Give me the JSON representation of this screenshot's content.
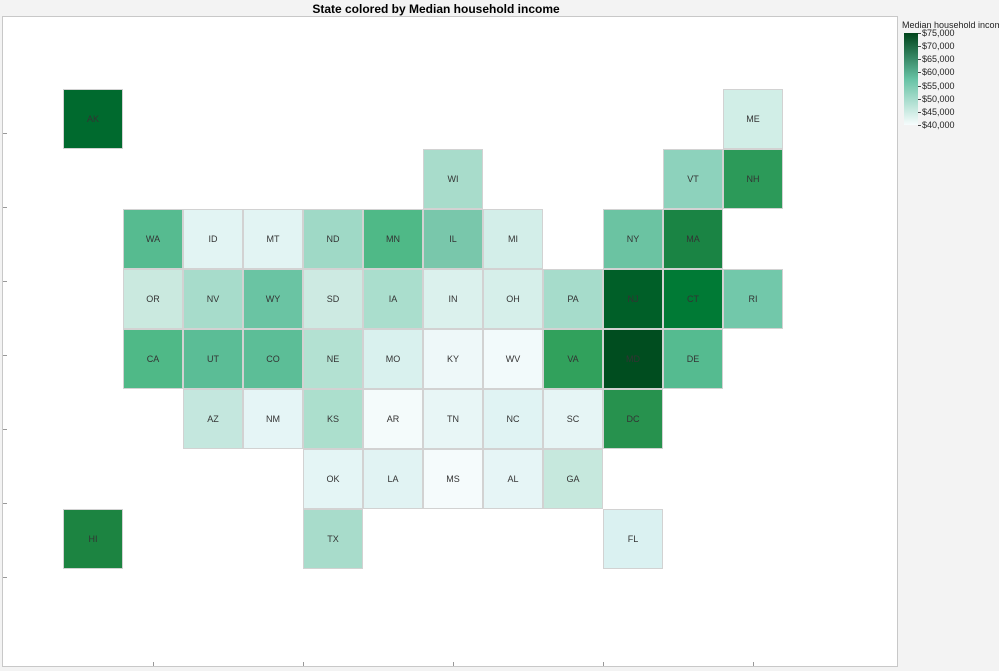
{
  "title": "State colored by Median household income",
  "legend": {
    "title": "Median household income",
    "labels": [
      "$75,000",
      "$70,000",
      "$65,000",
      "$60,000",
      "$55,000",
      "$50,000",
      "$45,000",
      "$40,000"
    ],
    "values": [
      75000,
      70000,
      65000,
      60000,
      55000,
      50000,
      45000,
      40000
    ]
  },
  "colors": {
    "scale_low": "#f7fcfd",
    "scale_mid": "#66c2a4",
    "scale_high": "#00441b"
  },
  "tiles": [
    {
      "state": "AK",
      "col": 0,
      "row": 0,
      "color": "#006a2e"
    },
    {
      "state": "ME",
      "col": 11,
      "row": 0,
      "color": "#d1eee7"
    },
    {
      "state": "WI",
      "col": 6,
      "row": 1,
      "color": "#a8dccb"
    },
    {
      "state": "VT",
      "col": 10,
      "row": 1,
      "color": "#8dd2bc"
    },
    {
      "state": "NH",
      "col": 11,
      "row": 1,
      "color": "#2c9a59"
    },
    {
      "state": "WA",
      "col": 1,
      "row": 2,
      "color": "#56bb90"
    },
    {
      "state": "ID",
      "col": 2,
      "row": 2,
      "color": "#e2f4f3"
    },
    {
      "state": "MT",
      "col": 3,
      "row": 2,
      "color": "#e2f4f3"
    },
    {
      "state": "ND",
      "col": 4,
      "row": 2,
      "color": "#9fd9c6"
    },
    {
      "state": "MN",
      "col": 5,
      "row": 2,
      "color": "#4fb987"
    },
    {
      "state": "IL",
      "col": 6,
      "row": 2,
      "color": "#79c7ab"
    },
    {
      "state": "MI",
      "col": 7,
      "row": 2,
      "color": "#d3eee9"
    },
    {
      "state": "NY",
      "col": 9,
      "row": 2,
      "color": "#6bc3a2"
    },
    {
      "state": "MA",
      "col": 10,
      "row": 2,
      "color": "#1a8444"
    },
    {
      "state": "OR",
      "col": 1,
      "row": 3,
      "color": "#cae9df"
    },
    {
      "state": "NV",
      "col": 2,
      "row": 3,
      "color": "#a7dccb"
    },
    {
      "state": "WY",
      "col": 3,
      "row": 3,
      "color": "#6ac4a3"
    },
    {
      "state": "SD",
      "col": 4,
      "row": 3,
      "color": "#cdeae2"
    },
    {
      "state": "IA",
      "col": 5,
      "row": 3,
      "color": "#aadecd"
    },
    {
      "state": "IN",
      "col": 6,
      "row": 3,
      "color": "#dbf1ed"
    },
    {
      "state": "OH",
      "col": 7,
      "row": 3,
      "color": "#d6efea"
    },
    {
      "state": "PA",
      "col": 8,
      "row": 3,
      "color": "#a6dccb"
    },
    {
      "state": "NJ",
      "col": 9,
      "row": 3,
      "color": "#005f28"
    },
    {
      "state": "CT",
      "col": 10,
      "row": 3,
      "color": "#007a35"
    },
    {
      "state": "RI",
      "col": 11,
      "row": 3,
      "color": "#72c8aa"
    },
    {
      "state": "CA",
      "col": 1,
      "row": 4,
      "color": "#4fb987"
    },
    {
      "state": "UT",
      "col": 2,
      "row": 4,
      "color": "#5bbd96"
    },
    {
      "state": "CO",
      "col": 3,
      "row": 4,
      "color": "#5cbe97"
    },
    {
      "state": "NE",
      "col": 4,
      "row": 4,
      "color": "#b3e1d2"
    },
    {
      "state": "MO",
      "col": 5,
      "row": 4,
      "color": "#d9f1ee"
    },
    {
      "state": "KY",
      "col": 6,
      "row": 4,
      "color": "#eef8f9"
    },
    {
      "state": "WV",
      "col": 7,
      "row": 4,
      "color": "#f2fafb"
    },
    {
      "state": "VA",
      "col": 8,
      "row": 4,
      "color": "#31a15c"
    },
    {
      "state": "MD",
      "col": 9,
      "row": 4,
      "color": "#004d1f"
    },
    {
      "state": "DE",
      "col": 10,
      "row": 4,
      "color": "#55bb90"
    },
    {
      "state": "AZ",
      "col": 2,
      "row": 5,
      "color": "#c4e7de"
    },
    {
      "state": "NM",
      "col": 3,
      "row": 5,
      "color": "#e5f5f6"
    },
    {
      "state": "KS",
      "col": 4,
      "row": 5,
      "color": "#acdfcd"
    },
    {
      "state": "AR",
      "col": 5,
      "row": 5,
      "color": "#f4fbfb"
    },
    {
      "state": "TN",
      "col": 6,
      "row": 5,
      "color": "#e8f6f6"
    },
    {
      "state": "NC",
      "col": 7,
      "row": 5,
      "color": "#e0f3f3"
    },
    {
      "state": "SC",
      "col": 8,
      "row": 5,
      "color": "#e6f5f5"
    },
    {
      "state": "DC",
      "col": 9,
      "row": 5,
      "color": "#27924e"
    },
    {
      "state": "OK",
      "col": 4,
      "row": 6,
      "color": "#e4f5f5"
    },
    {
      "state": "LA",
      "col": 5,
      "row": 6,
      "color": "#e1f3f3"
    },
    {
      "state": "MS",
      "col": 6,
      "row": 6,
      "color": "#f5fbfc"
    },
    {
      "state": "AL",
      "col": 7,
      "row": 6,
      "color": "#e6f5f6"
    },
    {
      "state": "GA",
      "col": 8,
      "row": 6,
      "color": "#c6e8dd"
    },
    {
      "state": "HI",
      "col": 0,
      "row": 7,
      "color": "#1c8441"
    },
    {
      "state": "TX",
      "col": 4,
      "row": 7,
      "color": "#a8dccb"
    },
    {
      "state": "FL",
      "col": 9,
      "row": 7,
      "color": "#daf1f1"
    }
  ]
}
